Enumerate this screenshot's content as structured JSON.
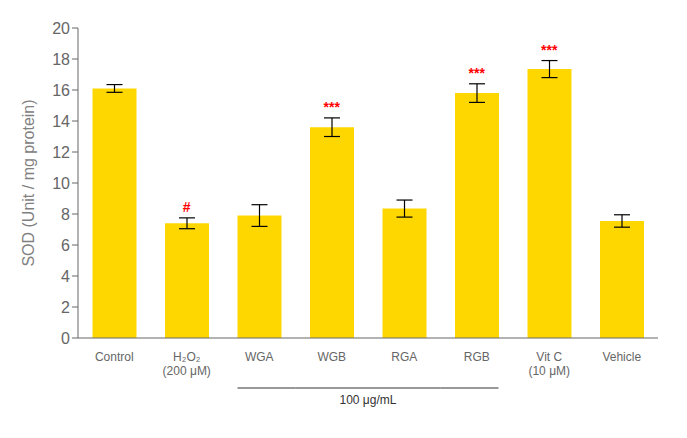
{
  "chart_data": {
    "type": "bar",
    "categories": [
      "Control",
      "H₂O₂\n(200 μM)",
      "WGA",
      "WGB",
      "RGA",
      "RGB",
      "Vit C\n(10 μM)",
      "Vehicle"
    ],
    "values": [
      16.1,
      7.4,
      7.9,
      13.6,
      8.35,
      15.8,
      17.35,
      7.55
    ],
    "errors": [
      0.25,
      0.35,
      0.7,
      0.6,
      0.55,
      0.6,
      0.55,
      0.4
    ],
    "color": "#FFD700",
    "ylabel": "SOD (Unit / mg protein)",
    "ylim": [
      0,
      20.0
    ],
    "yticks": [
      0,
      2,
      4,
      6,
      8,
      10,
      12,
      14,
      16,
      18,
      20
    ],
    "grid": false,
    "annotations": [
      {
        "category": "H₂O₂\n(200 μM)",
        "text": "#",
        "color": "red"
      },
      {
        "category": "WGB",
        "text": "***",
        "color": "red"
      },
      {
        "category": "RGB",
        "text": "***",
        "color": "red"
      },
      {
        "category": "Vit C\n(10 μM)",
        "text": "***",
        "color": "red"
      }
    ],
    "group_brackets": [
      {
        "from": "WGA",
        "to": "RGB",
        "label": "100 μg/mL"
      }
    ]
  }
}
